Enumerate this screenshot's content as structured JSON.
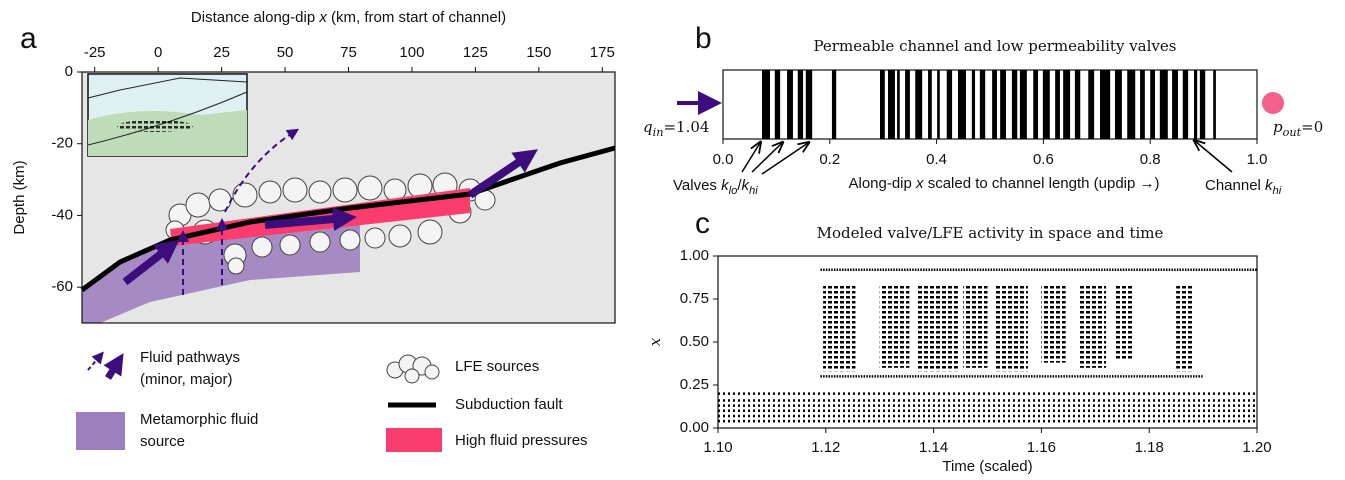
{
  "chart_data": [
    {
      "type": "cross-section",
      "panel": "a",
      "xlabel": [
        "Distance along-dip ",
        "x",
        " (km, from start of channel)"
      ],
      "ylabel": "Depth (km)",
      "xlim": [
        -30,
        180
      ],
      "xticks": [
        -25,
        0,
        25,
        50,
        75,
        100,
        125,
        150,
        175
      ],
      "ylim": [
        -70,
        0
      ],
      "yticks": [
        0,
        -20,
        -40,
        -60
      ],
      "legend": [
        {
          "label": [
            "Fluid pathways",
            "(minor, major)"
          ],
          "color": "#3d0d7e"
        },
        {
          "label": [
            "Metamorphic fluid",
            "source"
          ],
          "color": "#9d7fc0"
        },
        {
          "label": [
            "LFE sources"
          ],
          "color": "#f4f4f4"
        },
        {
          "label": [
            "Subduction fault"
          ],
          "color": "#000000"
        },
        {
          "label": [
            "High fluid pressures"
          ],
          "color": "#fb3d6e"
        }
      ]
    },
    {
      "type": "valves",
      "panel": "b",
      "title": "Permeable channel and low permeability valves",
      "xlabel": [
        "Along-dip ",
        "x",
        " scaled to channel length (updip →)"
      ],
      "inlet_label": [
        "q",
        "in",
        "=1.04"
      ],
      "outlet_label": [
        "p",
        "out",
        "=0"
      ],
      "valves_label": [
        "Valves ",
        "k",
        "lo",
        "/",
        "k",
        "hi"
      ],
      "channel_label": [
        "Channel ",
        "k",
        "hi"
      ],
      "inlet_color": "#3d0d7e",
      "outlet_color": "#f4608c",
      "valve_color": "#000000",
      "xlim": [
        0,
        1
      ],
      "xticks": [
        {
          "value": 0,
          "label": "0.0"
        },
        0.2,
        0.4,
        0.6,
        0.8,
        {
          "value": 1,
          "label": "1.0"
        }
      ],
      "valves": [
        [
          0.073,
          0.088
        ],
        [
          0.097,
          0.107
        ],
        [
          0.12,
          0.131
        ],
        [
          0.14,
          0.15
        ],
        [
          0.155,
          0.167
        ],
        [
          0.204,
          0.212
        ],
        [
          0.294,
          0.303
        ],
        [
          0.309,
          0.322
        ],
        [
          0.326,
          0.331
        ],
        [
          0.341,
          0.35
        ],
        [
          0.36,
          0.373
        ],
        [
          0.384,
          0.391
        ],
        [
          0.401,
          0.406
        ],
        [
          0.419,
          0.429
        ],
        [
          0.44,
          0.455
        ],
        [
          0.466,
          0.472
        ],
        [
          0.481,
          0.491
        ],
        [
          0.504,
          0.513
        ],
        [
          0.519,
          0.53
        ],
        [
          0.541,
          0.551
        ],
        [
          0.556,
          0.569
        ],
        [
          0.581,
          0.59
        ],
        [
          0.599,
          0.612
        ],
        [
          0.622,
          0.631
        ],
        [
          0.637,
          0.65
        ],
        [
          0.659,
          0.669
        ],
        [
          0.684,
          0.695
        ],
        [
          0.706,
          0.725
        ],
        [
          0.734,
          0.747
        ],
        [
          0.757,
          0.772
        ],
        [
          0.781,
          0.79
        ],
        [
          0.8,
          0.809
        ],
        [
          0.818,
          0.833
        ],
        [
          0.841,
          0.852
        ],
        [
          0.861,
          0.871
        ],
        [
          0.882,
          0.888
        ],
        [
          0.893,
          0.903
        ],
        [
          0.918,
          0.923
        ]
      ]
    },
    {
      "type": "raster",
      "panel": "c",
      "title": "Modeled valve/LFE activity in space and time",
      "xlabel": "Time (scaled)",
      "ylabel": "x",
      "xlim": [
        1.1,
        1.2
      ],
      "xticks": [
        {
          "value": 1.1,
          "label": "1.10"
        },
        1.12,
        1.14,
        1.16,
        1.18,
        {
          "value": 1.2,
          "label": "1.20"
        }
      ],
      "ylim": [
        0,
        1
      ],
      "yticks": [
        {
          "value": 0,
          "label": "0.00"
        },
        0.25,
        {
          "value": 0.5,
          "label": "0.50"
        },
        0.75,
        {
          "value": 1,
          "label": "1.00"
        }
      ],
      "rows": [
        {
          "y": 0.92,
          "x": [
            1.119,
            1.2
          ]
        },
        {
          "y": 0.3,
          "x": [
            1.119,
            1.19
          ]
        },
        {
          "y": 0.2,
          "x": [
            1.1,
            1.2
          ]
        },
        {
          "y": 0.16,
          "x": [
            1.1,
            1.2
          ]
        },
        {
          "y": 0.13,
          "x": [
            1.1,
            1.2
          ]
        },
        {
          "y": 0.1,
          "x": [
            1.1,
            1.2
          ]
        },
        {
          "y": 0.07,
          "x": [
            1.1,
            1.2
          ]
        },
        {
          "y": 0.04,
          "x": [
            1.1,
            1.2
          ]
        }
      ],
      "bursts": [
        {
          "x": [
            1.1195,
            1.1255
          ],
          "y": [
            0.33,
            0.84
          ]
        },
        {
          "x": [
            1.13,
            1.1355
          ],
          "y": [
            0.35,
            0.84
          ]
        },
        {
          "x": [
            1.137,
            1.1445
          ],
          "y": [
            0.33,
            0.84
          ]
        },
        {
          "x": [
            1.1455,
            1.15
          ],
          "y": [
            0.35,
            0.84
          ]
        },
        {
          "x": [
            1.1515,
            1.1575
          ],
          "y": [
            0.33,
            0.84
          ]
        },
        {
          "x": [
            1.16,
            1.1645
          ],
          "y": [
            0.38,
            0.84
          ]
        },
        {
          "x": [
            1.167,
            1.172
          ],
          "y": [
            0.35,
            0.84
          ]
        },
        {
          "x": [
            1.1735,
            1.177
          ],
          "y": [
            0.4,
            0.84
          ]
        },
        {
          "x": [
            1.185,
            1.188
          ],
          "y": [
            0.33,
            0.84
          ]
        }
      ]
    }
  ]
}
